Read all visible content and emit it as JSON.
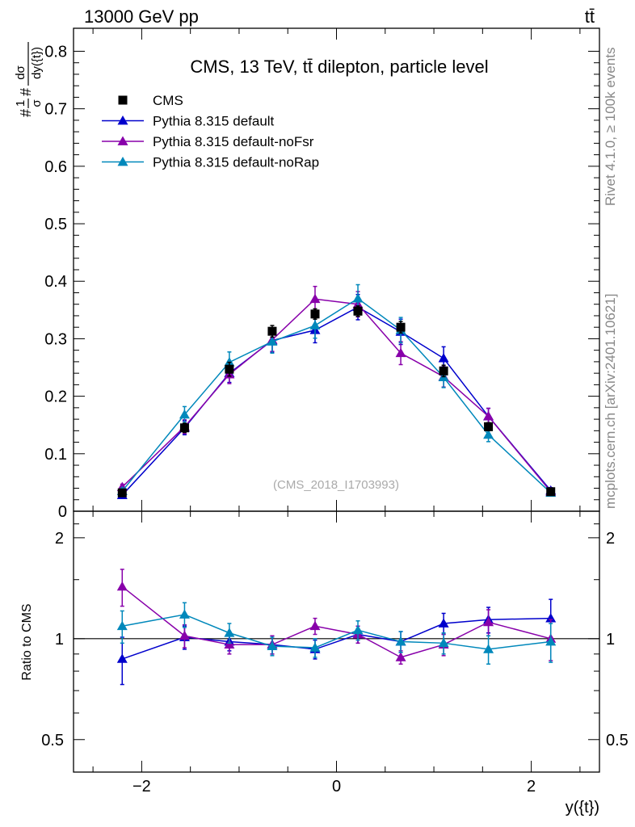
{
  "header": {
    "beam_label": "13000 GeV pp",
    "process_label": "tt̄"
  },
  "side_text": {
    "rivet": "Rivet 4.1.0, ≥ 100k events",
    "mcplots": "mcplots.cern.ch [arXiv:2401.10621]"
  },
  "colors": {
    "cms": "#000000",
    "default": "#0000cc",
    "noFsr": "#8800aa",
    "noRap": "#0088bb"
  },
  "chart_data": [
    {
      "type": "scatter",
      "panel": "main",
      "title": "CMS, 13 TeV, tt̄ dilepton, particle level",
      "watermark": "(CMS_2018_I1703993)",
      "ylabel": "#frac{1}{σ}#frac{dσ}{dy({t})}",
      "xlabel": "",
      "xlim": [
        -2.7,
        2.7
      ],
      "ylim": [
        0,
        0.84
      ],
      "yticks": [
        0,
        0.1,
        0.2,
        0.3,
        0.4,
        0.5,
        0.6,
        0.7,
        0.8
      ],
      "ytick_labels": [
        "0",
        "0.1",
        "0.2",
        "0.3",
        "0.4",
        "0.5",
        "0.6",
        "0.7",
        "0.8"
      ],
      "legend_position": "top-left",
      "x": [
        -2.2,
        -1.56,
        -1.1,
        -0.66,
        -0.22,
        0.22,
        0.66,
        1.1,
        1.56,
        2.2
      ],
      "series": [
        {
          "name": "CMS",
          "marker": "square",
          "color": "#000000",
          "values": [
            0.032,
            0.145,
            0.247,
            0.313,
            0.343,
            0.348,
            0.32,
            0.244,
            0.147,
            0.034
          ],
          "errors": [
            0.003,
            0.008,
            0.012,
            0.01,
            0.009,
            0.009,
            0.01,
            0.01,
            0.007,
            0.003
          ]
        },
        {
          "name": "Pythia 8.315 default",
          "marker": "triangle",
          "color": "#0000cc",
          "values": [
            0.028,
            0.145,
            0.24,
            0.297,
            0.315,
            0.355,
            0.312,
            0.266,
            0.165,
            0.036
          ],
          "errors": [
            0.004,
            0.012,
            0.016,
            0.02,
            0.022,
            0.022,
            0.022,
            0.02,
            0.014,
            0.005
          ]
        },
        {
          "name": "Pythia 8.315 default-noFsr",
          "marker": "triangle",
          "color": "#8800aa",
          "values": [
            0.042,
            0.147,
            0.238,
            0.298,
            0.369,
            0.36,
            0.275,
            0.234,
            0.165,
            0.034
          ],
          "errors": [
            0.005,
            0.012,
            0.016,
            0.02,
            0.022,
            0.022,
            0.02,
            0.018,
            0.014,
            0.005
          ]
        },
        {
          "name": "Pythia 8.315 default-noRap",
          "marker": "triangle",
          "color": "#0088bb",
          "values": [
            0.035,
            0.168,
            0.259,
            0.295,
            0.323,
            0.37,
            0.315,
            0.233,
            0.133,
            0.032
          ],
          "errors": [
            0.005,
            0.014,
            0.018,
            0.02,
            0.022,
            0.024,
            0.022,
            0.018,
            0.012,
            0.005
          ]
        }
      ]
    },
    {
      "type": "scatter",
      "panel": "ratio",
      "ylabel": "Ratio to CMS",
      "xlabel": "y({t})",
      "xlim": [
        -2.7,
        2.7
      ],
      "ylim": [
        0.4,
        2.4
      ],
      "yscale": "log",
      "yticks": [
        0.5,
        1,
        2
      ],
      "ytick_labels": [
        "0.5",
        "1",
        "2"
      ],
      "xticks": [
        -2,
        0,
        2
      ],
      "xtick_labels": [
        "−2",
        "0",
        "2"
      ],
      "x": [
        -2.2,
        -1.56,
        -1.1,
        -0.66,
        -0.22,
        0.22,
        0.66,
        1.1,
        1.56,
        2.2
      ],
      "series": [
        {
          "name": "Pythia 8.315 default",
          "color": "#0000cc",
          "values": [
            0.87,
            1.01,
            0.98,
            0.96,
            0.93,
            1.03,
            0.98,
            1.11,
            1.14,
            1.15
          ],
          "errors": [
            0.14,
            0.08,
            0.06,
            0.06,
            0.06,
            0.06,
            0.07,
            0.08,
            0.1,
            0.16
          ]
        },
        {
          "name": "Pythia 8.315 default-noFsr",
          "color": "#8800aa",
          "values": [
            1.43,
            1.02,
            0.96,
            0.96,
            1.09,
            1.03,
            0.88,
            0.96,
            1.12,
            1.0
          ],
          "errors": [
            0.18,
            0.08,
            0.06,
            0.06,
            0.06,
            0.06,
            0.04,
            0.07,
            0.1,
            0.14
          ]
        },
        {
          "name": "Pythia 8.315 default-noRap",
          "color": "#0088bb",
          "values": [
            1.09,
            1.18,
            1.04,
            0.95,
            0.94,
            1.06,
            0.98,
            0.97,
            0.93,
            0.98
          ],
          "errors": [
            0.12,
            0.1,
            0.07,
            0.06,
            0.06,
            0.07,
            0.07,
            0.07,
            0.09,
            0.13
          ]
        }
      ]
    }
  ]
}
